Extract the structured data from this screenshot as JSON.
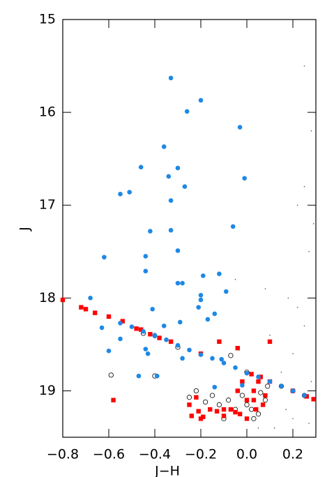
{
  "chart_data": {
    "type": "scatter",
    "xlabel": "J−H",
    "ylabel": "J",
    "xlim": [
      -0.8,
      0.3
    ],
    "ylim": [
      19.5,
      15
    ],
    "xticks": [
      {
        "value": -0.8,
        "label": "−0.8"
      },
      {
        "value": -0.6,
        "label": "−0.6"
      },
      {
        "value": -0.4,
        "label": "−0.4"
      },
      {
        "value": -0.2,
        "label": "−0.2"
      },
      {
        "value": 0.0,
        "label": "0.0"
      },
      0.2
    ],
    "yticks": [
      15,
      16,
      17,
      18,
      19
    ],
    "series": [
      {
        "marker": "dot",
        "color": "#555555",
        "x": [
          0.25,
          0.28,
          0.22,
          0.27,
          0.18,
          0.1,
          0.2,
          0.15,
          0.25,
          0.28,
          0.05,
          0.2,
          0.12,
          0.27,
          -0.05,
          0.08,
          0.22,
          0.17,
          -0.2,
          0.25,
          0.29
        ],
        "values": [
          15.5,
          16.2,
          17.0,
          17.5,
          18.0,
          18.4,
          18.6,
          18.8,
          18.3,
          18.9,
          19.4,
          19.3,
          19.4,
          19.35,
          17.8,
          17.9,
          18.1,
          19.2,
          19.45,
          16.8,
          17.2
        ]
      },
      {
        "marker": "open-circle",
        "color": "#000000",
        "x": [
          -0.59,
          -0.4,
          -0.25,
          -0.22,
          -0.18,
          -0.15,
          -0.12,
          -0.08,
          -0.05,
          -0.02,
          0.0,
          0.02,
          0.05,
          0.08,
          0.06,
          0.09,
          -0.1,
          0.03,
          -0.07,
          0.15,
          0.2,
          0.25,
          0.0,
          -0.3,
          -0.45
        ],
        "values": [
          18.83,
          18.84,
          19.07,
          19.0,
          19.12,
          19.05,
          19.15,
          19.1,
          19.2,
          19.05,
          19.15,
          19.2,
          19.25,
          19.1,
          19.02,
          18.95,
          19.3,
          19.3,
          18.62,
          18.95,
          19.0,
          19.05,
          18.8,
          18.53,
          18.38
        ]
      },
      {
        "marker": "square",
        "color": "#ff0000",
        "x": [
          -0.8,
          -0.72,
          -0.7,
          -0.66,
          -0.6,
          -0.54,
          -0.48,
          -0.46,
          -0.42,
          -0.38,
          -0.33,
          -0.2,
          0.02,
          0.1,
          0.2,
          0.26,
          0.29,
          -0.58,
          0.1,
          -0.04,
          -0.12,
          -0.22,
          -0.21,
          -0.19,
          -0.24,
          -0.16,
          -0.13,
          -0.1,
          -0.07,
          -0.05,
          -0.03,
          0.0,
          0.03,
          0.05,
          0.06,
          0.03,
          0.07,
          0.04,
          -0.02,
          -0.04,
          0.0,
          -0.25,
          -0.2,
          0.08,
          -0.1
        ],
        "values": [
          18.02,
          18.1,
          18.12,
          18.16,
          18.2,
          18.25,
          18.33,
          18.34,
          18.39,
          18.43,
          18.47,
          18.6,
          18.82,
          18.9,
          19.0,
          19.06,
          19.09,
          19.1,
          18.47,
          18.54,
          18.47,
          19.07,
          19.22,
          19.28,
          19.27,
          19.2,
          19.22,
          19.2,
          19.2,
          19.23,
          19.25,
          19.1,
          19.0,
          18.9,
          18.85,
          19.1,
          19.15,
          19.2,
          18.9,
          19.0,
          19.3,
          19.15,
          19.3,
          19.05,
          19.27
        ]
      },
      {
        "marker": "circle",
        "color": "#1e88e5",
        "x": [
          -0.33,
          -0.2,
          -0.26,
          -0.03,
          -0.36,
          -0.46,
          -0.3,
          -0.34,
          -0.27,
          -0.01,
          -0.51,
          -0.55,
          -0.33,
          -0.33,
          -0.42,
          -0.06,
          -0.62,
          -0.44,
          -0.3,
          -0.44,
          -0.19,
          -0.12,
          -0.3,
          -0.28,
          -0.09,
          -0.2,
          -0.2,
          -0.68,
          -0.21,
          -0.41,
          -0.14,
          -0.63,
          -0.36,
          -0.29,
          -0.17,
          -0.4,
          -0.55,
          -0.44,
          -0.6,
          -0.43,
          -0.28,
          -0.47,
          -0.39,
          -0.14,
          -0.11,
          -0.02,
          -0.55,
          -0.5,
          -0.45,
          -0.4,
          -0.35,
          -0.3,
          -0.25,
          -0.2,
          -0.15,
          -0.1,
          -0.05,
          0.0,
          0.05,
          0.1,
          0.15,
          0.2,
          0.25
        ],
        "values": [
          15.63,
          15.87,
          15.99,
          16.16,
          16.37,
          16.59,
          16.6,
          16.69,
          16.8,
          16.71,
          16.86,
          16.88,
          16.95,
          17.27,
          17.28,
          17.23,
          17.56,
          17.55,
          17.49,
          17.71,
          17.76,
          17.74,
          17.84,
          17.84,
          17.93,
          17.97,
          18.02,
          18.0,
          18.1,
          18.12,
          18.17,
          18.32,
          18.3,
          18.26,
          18.23,
          18.4,
          18.44,
          18.55,
          18.57,
          18.6,
          18.65,
          18.84,
          18.84,
          18.96,
          18.66,
          18.94,
          18.27,
          18.31,
          18.36,
          18.41,
          18.45,
          18.51,
          18.56,
          18.61,
          18.65,
          18.7,
          18.75,
          18.81,
          18.85,
          18.9,
          18.95,
          19.0,
          19.05
        ]
      }
    ]
  }
}
